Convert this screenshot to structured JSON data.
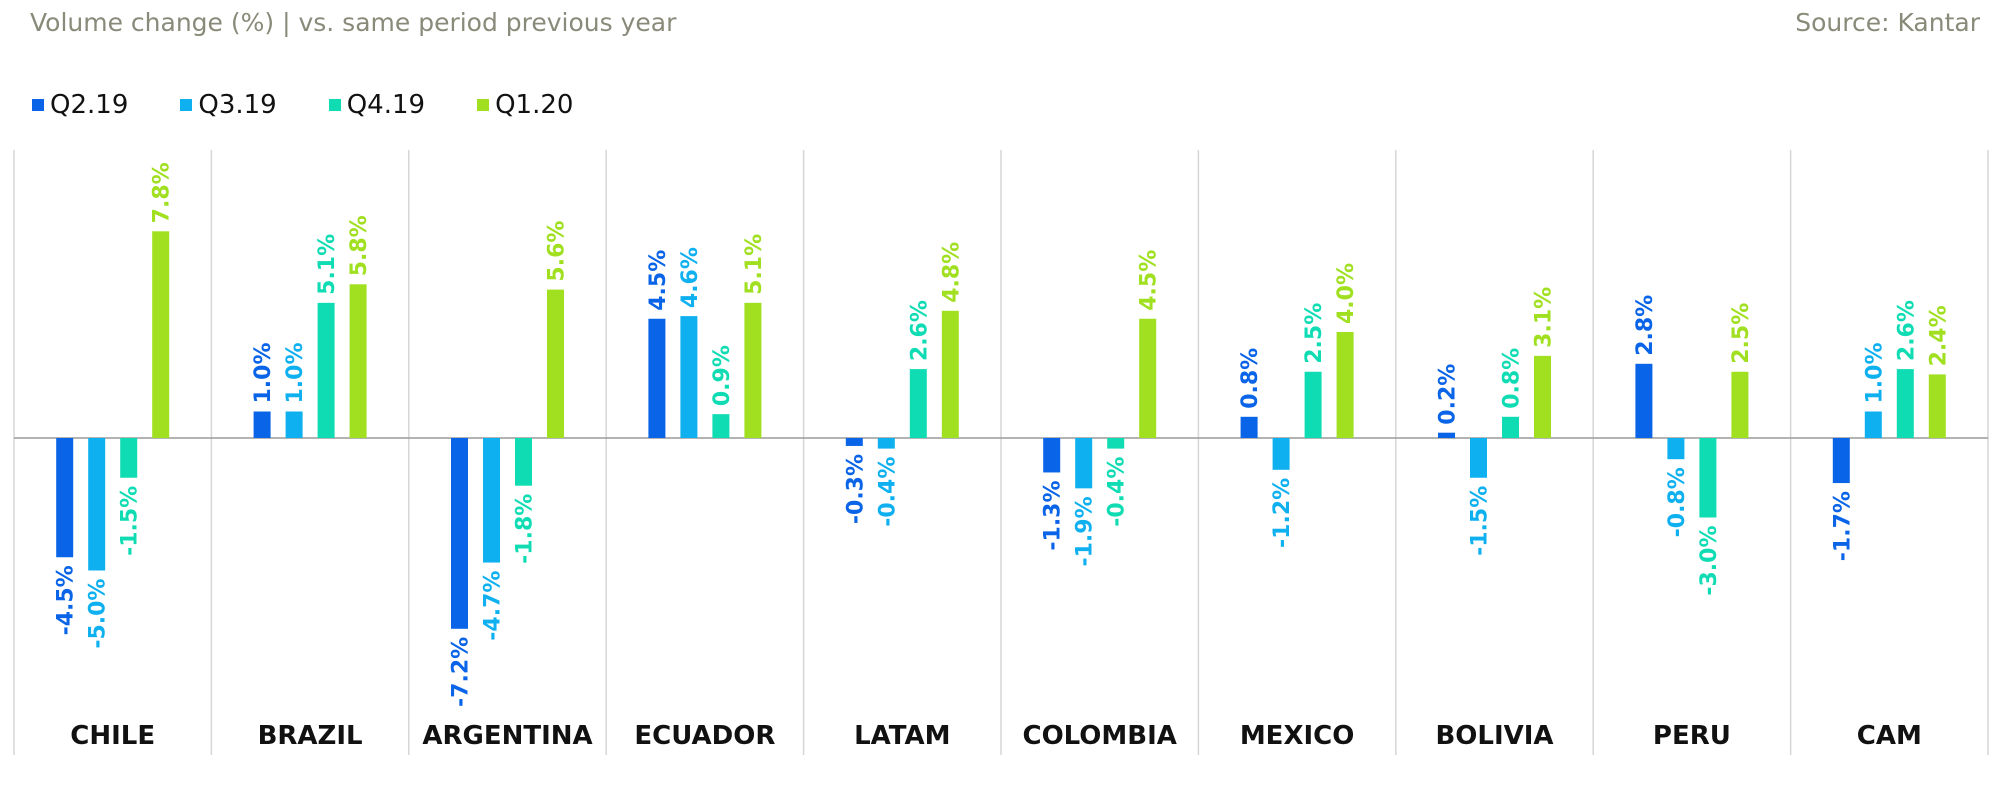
{
  "header": {
    "subtitle": "Volume change (%)  |  vs. same period previous year",
    "source": "Source: Kantar"
  },
  "legend": [
    {
      "label": "Q2.19",
      "color": "#0a64e8"
    },
    {
      "label": "Q3.19",
      "color": "#0fb0f0"
    },
    {
      "label": "Q4.19",
      "color": "#10dcb4"
    },
    {
      "label": "Q1.20",
      "color": "#a0e020"
    }
  ],
  "chart_data": {
    "type": "bar",
    "title": "",
    "xlabel": "",
    "ylabel": "Volume change (%)",
    "ylim": [
      -7.2,
      7.8
    ],
    "grid": "vertical separators between categories",
    "categories": [
      "CHILE",
      "BRAZIL",
      "ARGENTINA",
      "ECUADOR",
      "LATAM",
      "COLOMBIA",
      "MEXICO",
      "BOLIVIA",
      "PERU",
      "CAM"
    ],
    "series": [
      {
        "name": "Q2.19",
        "color": "#0a64e8",
        "values": [
          -4.5,
          1.0,
          -7.2,
          4.5,
          -0.3,
          -1.3,
          0.8,
          0.2,
          2.8,
          -1.7
        ]
      },
      {
        "name": "Q3.19",
        "color": "#0fb0f0",
        "values": [
          -5.0,
          1.0,
          -4.7,
          4.6,
          -0.4,
          -1.9,
          -1.2,
          -1.5,
          -0.8,
          1.0
        ]
      },
      {
        "name": "Q4.19",
        "color": "#10dcb4",
        "values": [
          -1.5,
          5.1,
          -1.8,
          0.9,
          2.6,
          -0.4,
          2.5,
          0.8,
          -3.0,
          2.6
        ]
      },
      {
        "name": "Q1.20",
        "color": "#a0e020",
        "values": [
          7.8,
          5.8,
          5.6,
          5.1,
          4.8,
          4.5,
          4.0,
          3.1,
          2.5,
          2.4
        ]
      }
    ]
  }
}
